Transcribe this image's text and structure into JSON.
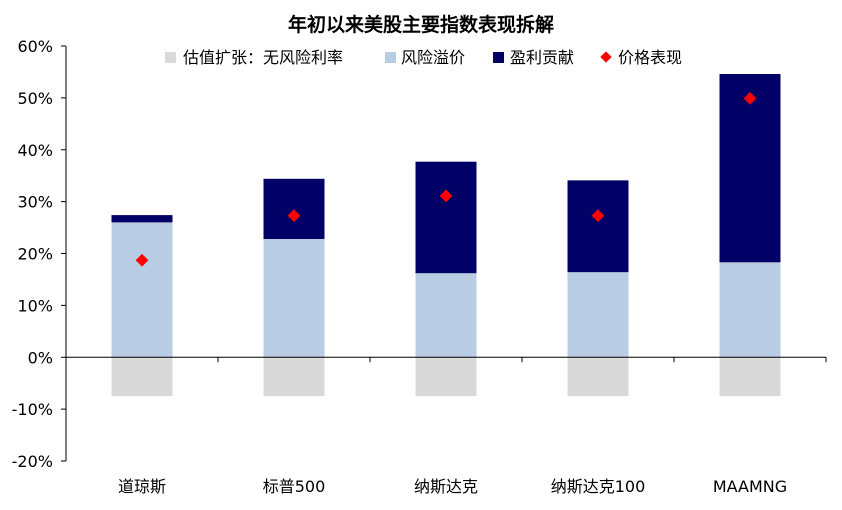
{
  "chart_data": {
    "type": "bar",
    "title": "年初以来美股主要指数表现拆解",
    "categories": [
      "道琼斯",
      "标普500",
      "纳斯达克",
      "纳斯达克100",
      "MAAMNG"
    ],
    "series": [
      {
        "name": "估值扩张：无风险利率",
        "kind": "bar",
        "values": [
          -7.5,
          -7.5,
          -7.5,
          -7.5,
          -7.5
        ]
      },
      {
        "name": "风险溢价",
        "kind": "bar",
        "values": [
          26.0,
          22.8,
          16.2,
          16.4,
          18.3
        ]
      },
      {
        "name": "盈利贡献",
        "kind": "bar",
        "values": [
          1.4,
          11.6,
          21.5,
          17.7,
          36.3
        ]
      },
      {
        "name": "价格表现",
        "kind": "marker",
        "values": [
          18.7,
          27.3,
          31.1,
          27.3,
          49.9
        ]
      }
    ],
    "colors": {
      "估值扩张：无风险利率": "#d9d9d9",
      "风险溢价": "#b8cce4",
      "盈利贡献": "#000066",
      "价格表现": "#ff0000"
    },
    "yticks": [
      "-20%",
      "-10%",
      "0%",
      "10%",
      "20%",
      "30%",
      "40%",
      "50%",
      "60%"
    ],
    "ylim": [
      -20,
      60
    ],
    "legend_position": "top",
    "grid": false,
    "xlabel": "",
    "ylabel": ""
  }
}
